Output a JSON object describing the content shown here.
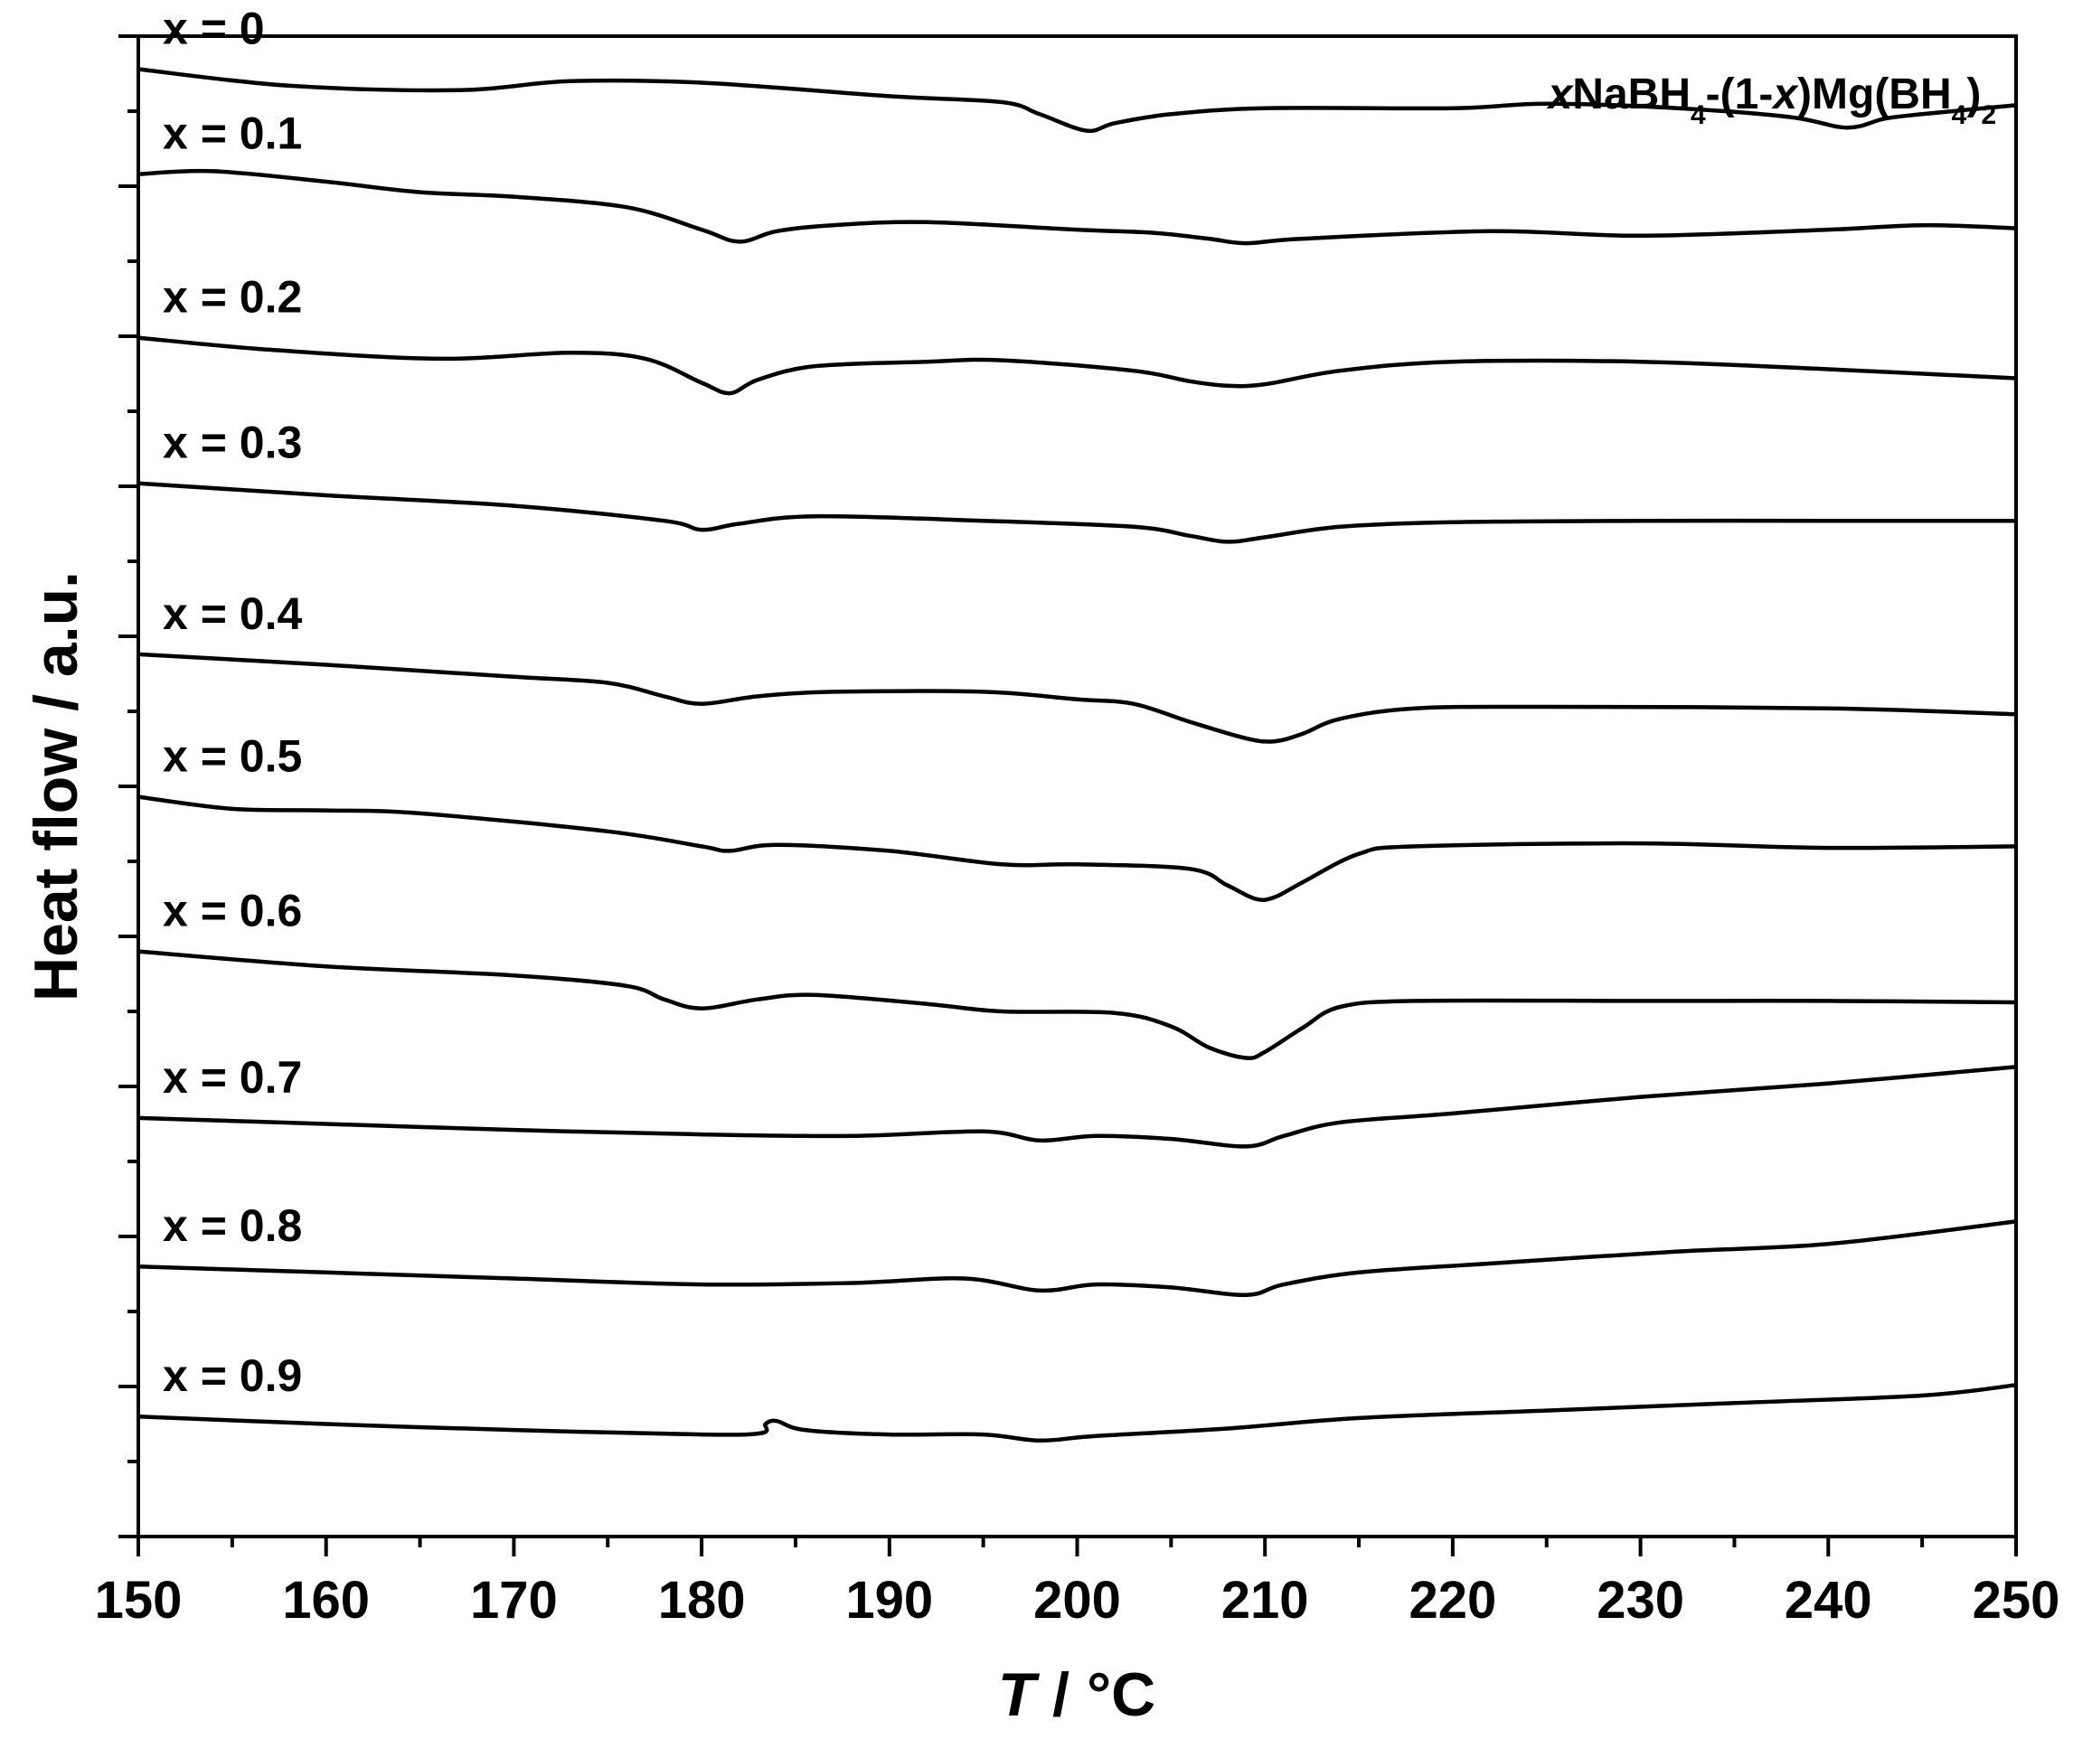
{
  "chart_data": {
    "type": "line",
    "title": "",
    "annotation": {
      "parts": [
        {
          "text": "x",
          "italic": true
        },
        {
          "text": "NaBH"
        },
        {
          "text": "4",
          "sub": true
        },
        {
          "text": "-(1-"
        },
        {
          "text": "x",
          "italic": true
        },
        {
          "text": ")Mg(BH"
        },
        {
          "text": "4",
          "sub": true
        },
        {
          "text": ")"
        },
        {
          "text": "2",
          "sub": true
        }
      ]
    },
    "xlabel": {
      "var": "T",
      "sep": " / ",
      "unit": "°C"
    },
    "ylabel": "Heat flow / a.u.",
    "xlim": [
      150,
      250
    ],
    "ylim": [
      0,
      10
    ],
    "y_tick_labels": "none",
    "x_ticks": [
      150,
      160,
      170,
      180,
      190,
      200,
      210,
      220,
      230,
      240,
      250
    ],
    "x_tick_labels": [
      "150",
      "160",
      "170",
      "180",
      "190",
      "200",
      "210",
      "220",
      "230",
      "240",
      "250"
    ],
    "grid": false,
    "legend": "none",
    "line_color": "#000000",
    "series": [
      {
        "name": "x = 0",
        "points": [
          [
            150,
            9.78
          ],
          [
            158,
            9.67
          ],
          [
            167,
            9.64
          ],
          [
            173,
            9.7
          ],
          [
            180,
            9.69
          ],
          [
            190,
            9.6
          ],
          [
            196,
            9.56
          ],
          [
            198,
            9.48
          ],
          [
            200.5,
            9.37
          ],
          [
            202,
            9.42
          ],
          [
            205,
            9.48
          ],
          [
            210,
            9.52
          ],
          [
            220,
            9.52
          ],
          [
            225,
            9.55
          ],
          [
            232,
            9.52
          ],
          [
            238,
            9.46
          ],
          [
            241,
            9.39
          ],
          [
            243,
            9.45
          ],
          [
            245,
            9.48
          ],
          [
            250,
            9.54
          ]
        ]
      },
      {
        "name": "x = 0.1",
        "points": [
          [
            150,
            9.08
          ],
          [
            154,
            9.1
          ],
          [
            160,
            9.03
          ],
          [
            165,
            8.96
          ],
          [
            170,
            8.93
          ],
          [
            176,
            8.86
          ],
          [
            180,
            8.71
          ],
          [
            182,
            8.63
          ],
          [
            184,
            8.7
          ],
          [
            187,
            8.74
          ],
          [
            192,
            8.76
          ],
          [
            200,
            8.71
          ],
          [
            204,
            8.69
          ],
          [
            207,
            8.65
          ],
          [
            209,
            8.62
          ],
          [
            212,
            8.65
          ],
          [
            222,
            8.7
          ],
          [
            230,
            8.67
          ],
          [
            240,
            8.71
          ],
          [
            245,
            8.74
          ],
          [
            250,
            8.72
          ]
        ]
      },
      {
        "name": "x = 0.2",
        "points": [
          [
            150,
            7.99
          ],
          [
            157,
            7.91
          ],
          [
            166,
            7.85
          ],
          [
            173,
            7.89
          ],
          [
            177,
            7.85
          ],
          [
            180,
            7.69
          ],
          [
            181.5,
            7.62
          ],
          [
            183,
            7.71
          ],
          [
            186,
            7.8
          ],
          [
            192,
            7.83
          ],
          [
            196,
            7.84
          ],
          [
            203,
            7.77
          ],
          [
            206,
            7.7
          ],
          [
            208,
            7.67
          ],
          [
            210,
            7.68
          ],
          [
            214,
            7.77
          ],
          [
            220,
            7.83
          ],
          [
            230,
            7.83
          ],
          [
            240,
            7.78
          ],
          [
            250,
            7.72
          ]
        ]
      },
      {
        "name": "x = 0.3",
        "points": [
          [
            150,
            7.02
          ],
          [
            160,
            6.94
          ],
          [
            170,
            6.87
          ],
          [
            178,
            6.77
          ],
          [
            180,
            6.71
          ],
          [
            182,
            6.75
          ],
          [
            186,
            6.8
          ],
          [
            195,
            6.77
          ],
          [
            203,
            6.73
          ],
          [
            206,
            6.67
          ],
          [
            208,
            6.63
          ],
          [
            210,
            6.66
          ],
          [
            214,
            6.73
          ],
          [
            220,
            6.76
          ],
          [
            230,
            6.77
          ],
          [
            240,
            6.77
          ],
          [
            250,
            6.77
          ]
        ]
      },
      {
        "name": "x = 0.4",
        "points": [
          [
            150,
            5.88
          ],
          [
            160,
            5.81
          ],
          [
            170,
            5.73
          ],
          [
            175,
            5.69
          ],
          [
            178,
            5.6
          ],
          [
            180,
            5.55
          ],
          [
            183,
            5.6
          ],
          [
            187,
            5.63
          ],
          [
            195,
            5.63
          ],
          [
            200,
            5.58
          ],
          [
            203,
            5.55
          ],
          [
            206,
            5.43
          ],
          [
            209,
            5.32
          ],
          [
            210.5,
            5.3
          ],
          [
            212,
            5.35
          ],
          [
            214,
            5.45
          ],
          [
            218,
            5.52
          ],
          [
            225,
            5.53
          ],
          [
            240,
            5.52
          ],
          [
            250,
            5.48
          ]
        ]
      },
      {
        "name": "x = 0.5",
        "points": [
          [
            150,
            4.93
          ],
          [
            155,
            4.85
          ],
          [
            160,
            4.84
          ],
          [
            165,
            4.82
          ],
          [
            175,
            4.7
          ],
          [
            180,
            4.6
          ],
          [
            181.5,
            4.57
          ],
          [
            184,
            4.61
          ],
          [
            190,
            4.57
          ],
          [
            196,
            4.48
          ],
          [
            200,
            4.48
          ],
          [
            206,
            4.45
          ],
          [
            208,
            4.34
          ],
          [
            209.5,
            4.25
          ],
          [
            210.5,
            4.26
          ],
          [
            212,
            4.36
          ],
          [
            215,
            4.55
          ],
          [
            218,
            4.6
          ],
          [
            230,
            4.62
          ],
          [
            240,
            4.59
          ],
          [
            250,
            4.6
          ]
        ]
      },
      {
        "name": "x = 0.6",
        "points": [
          [
            150,
            3.9
          ],
          [
            160,
            3.8
          ],
          [
            170,
            3.74
          ],
          [
            176,
            3.67
          ],
          [
            178,
            3.58
          ],
          [
            180,
            3.52
          ],
          [
            183,
            3.58
          ],
          [
            186,
            3.61
          ],
          [
            192,
            3.55
          ],
          [
            196,
            3.5
          ],
          [
            202,
            3.49
          ],
          [
            205,
            3.4
          ],
          [
            207,
            3.26
          ],
          [
            209,
            3.19
          ],
          [
            210,
            3.23
          ],
          [
            212,
            3.39
          ],
          [
            214,
            3.53
          ],
          [
            218,
            3.57
          ],
          [
            230,
            3.57
          ],
          [
            240,
            3.57
          ],
          [
            250,
            3.56
          ]
        ]
      },
      {
        "name": "x = 0.7",
        "points": [
          [
            150,
            2.79
          ],
          [
            160,
            2.75
          ],
          [
            170,
            2.71
          ],
          [
            180,
            2.68
          ],
          [
            188,
            2.67
          ],
          [
            195,
            2.7
          ],
          [
            198,
            2.64
          ],
          [
            201,
            2.67
          ],
          [
            205,
            2.65
          ],
          [
            209,
            2.6
          ],
          [
            211,
            2.67
          ],
          [
            214,
            2.76
          ],
          [
            220,
            2.82
          ],
          [
            230,
            2.93
          ],
          [
            240,
            3.02
          ],
          [
            250,
            3.13
          ]
        ]
      },
      {
        "name": "x = 0.8",
        "points": [
          [
            150,
            1.8
          ],
          [
            160,
            1.76
          ],
          [
            170,
            1.72
          ],
          [
            180,
            1.68
          ],
          [
            188,
            1.69
          ],
          [
            194,
            1.72
          ],
          [
            198,
            1.64
          ],
          [
            201,
            1.68
          ],
          [
            205,
            1.66
          ],
          [
            209,
            1.61
          ],
          [
            211,
            1.68
          ],
          [
            215,
            1.76
          ],
          [
            222,
            1.82
          ],
          [
            232,
            1.9
          ],
          [
            240,
            1.95
          ],
          [
            250,
            2.1
          ]
        ]
      },
      {
        "name": "x = 0.9",
        "points": [
          [
            150,
            0.8
          ],
          [
            160,
            0.75
          ],
          [
            170,
            0.71
          ],
          [
            180,
            0.68
          ],
          [
            183.2,
            0.69
          ],
          [
            183.4,
            0.75
          ],
          [
            184,
            0.77
          ],
          [
            185.5,
            0.71
          ],
          [
            190,
            0.68
          ],
          [
            195,
            0.68
          ],
          [
            198,
            0.64
          ],
          [
            201,
            0.67
          ],
          [
            208,
            0.72
          ],
          [
            215,
            0.79
          ],
          [
            225,
            0.84
          ],
          [
            235,
            0.89
          ],
          [
            245,
            0.94
          ],
          [
            250,
            1.01
          ]
        ]
      }
    ]
  }
}
